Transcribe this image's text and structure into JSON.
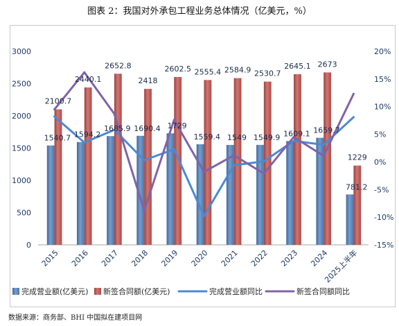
{
  "source": "数据来源：商务部、BHI 中国拟在建项目网",
  "colors": {
    "axis_text": "#1F3864",
    "value_label": "#1A2B4C",
    "legend_text": "#262626",
    "axis_line": "#A6A6A6"
  },
  "chart_data": {
    "type": "bar",
    "title": "图表 2：我国对外承包工程业务总体情况（亿美元，%）",
    "categories": [
      "2015",
      "2016",
      "2017",
      "2018",
      "2019",
      "2020",
      "2021",
      "2022",
      "2023",
      "2024",
      "2025上半年"
    ],
    "series": [
      {
        "name": "完成营业额(亿美元)",
        "type": "bar",
        "axis": "left",
        "color": "#4F81BD",
        "values": [
          1540.7,
          1594.2,
          1685.9,
          1690.4,
          1729,
          1559.4,
          1549,
          1549.9,
          1609.1,
          1659.7,
          781.2
        ]
      },
      {
        "name": "新签合同额(亿美元)",
        "type": "bar",
        "axis": "left",
        "color": "#C0504D",
        "values": [
          2100.7,
          2440.1,
          2652.8,
          2418,
          2602.5,
          2555.4,
          2584.9,
          2530.7,
          2645.1,
          2673,
          1229
        ]
      },
      {
        "name": "完成营业额同比",
        "type": "line",
        "axis": "right",
        "color": "#4A8AD2",
        "values": [
          8.2,
          3.5,
          5.8,
          0.3,
          2.3,
          -9.8,
          -0.6,
          0.1,
          3.8,
          3.1,
          8.1
        ]
      },
      {
        "name": "新签合同额同比",
        "type": "line",
        "axis": "right",
        "color": "#7F63A8",
        "values": [
          9.5,
          16.2,
          8.7,
          -8.8,
          7.6,
          -1.8,
          1.2,
          -2.1,
          4.5,
          1.1,
          12.3
        ]
      }
    ],
    "y_left": {
      "min": 0,
      "max": 3000,
      "step": 500,
      "tick_labels": [
        "0",
        "500",
        "1000",
        "1500",
        "2000",
        "2500",
        "3000"
      ]
    },
    "y_right": {
      "min": -15,
      "max": 20,
      "step": 5,
      "tick_labels": [
        "-15%",
        "-10%",
        "-5%",
        "0%",
        "5%",
        "10%",
        "15%",
        "20%"
      ]
    },
    "bar_data_labels": true,
    "grid": false,
    "legend": "bottom"
  }
}
